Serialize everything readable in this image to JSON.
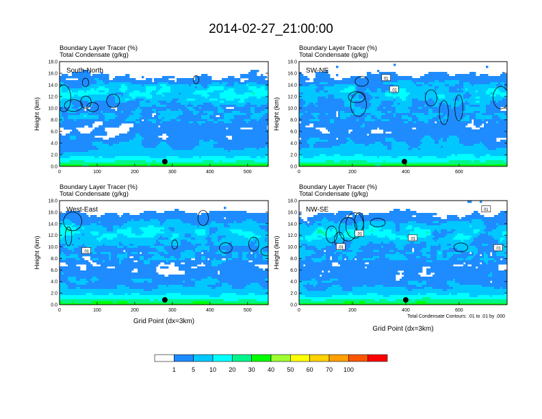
{
  "title": "2014-02-27_21:00:00",
  "panels": [
    {
      "id": "sn",
      "title1": "Boundary Layer Tracer   (%)",
      "title2": "Total Condensate   (g/kg)",
      "label": "South-North",
      "xticks": [
        "0",
        "100",
        "200",
        "300",
        "400",
        "500"
      ],
      "xmax": 555,
      "dot_x": 280,
      "box_labels": []
    },
    {
      "id": "swne",
      "title1": "Boundary Layer Tracer   (%)",
      "title2": "Total Condensate   (g/kg)",
      "label": "SW-NE",
      "xticks": [
        "0",
        "200",
        "400",
        "600"
      ],
      "xmax": 780,
      "dot_x": 395,
      "box_labels": [
        {
          "x": 325,
          "y": 15.2,
          "text": "01"
        },
        {
          "x": 355,
          "y": 13.2,
          "text": ".01"
        }
      ]
    },
    {
      "id": "we",
      "title1": "Boundary Layer Tracer   (%)",
      "title2": "Total Condensate   (g/kg)",
      "label": "West-East",
      "xticks": [
        "0",
        "100",
        "200",
        "300",
        "400",
        "500"
      ],
      "xmax": 555,
      "dot_x": 280,
      "box_labels": [
        {
          "x": 70,
          "y": 9.3,
          "text": ".01"
        }
      ]
    },
    {
      "id": "nwse",
      "title1": "Boundary Layer Tracer   (%)",
      "title2": "Total Condensate   (g/kg)",
      "label": "NW-SE",
      "xticks": [
        "0",
        "200",
        "400",
        "600"
      ],
      "xmax": 780,
      "dot_x": 400,
      "box_labels": [
        {
          "x": 225,
          "y": 12.3,
          "text": ".01"
        },
        {
          "x": 155,
          "y": 10.0,
          "text": ".01"
        },
        {
          "x": 425,
          "y": 11.5,
          "text": ".01"
        },
        {
          "x": 745,
          "y": 9.8,
          "text": ".01"
        },
        {
          "x": 700,
          "y": 16.5,
          "text": "01"
        }
      ]
    }
  ],
  "yticks": [
    "0.0",
    "2.0",
    "4.0",
    "6.0",
    "8.0",
    "10.0",
    "12.0",
    "14.0",
    "16.0",
    "18.0"
  ],
  "ylabel": "Height (km)",
  "xlabel": "Grid Point (dx=3km)",
  "contour_note": "Total Condensate Contours: .01 to .01 by .000",
  "colorbar": {
    "labels": [
      "1",
      "5",
      "10",
      "20",
      "30",
      "40",
      "50",
      "60",
      "70",
      "100"
    ],
    "colors": [
      "#ffffff",
      "#1e8cff",
      "#00c8ff",
      "#00ffff",
      "#00f58c",
      "#00ff00",
      "#a0ff32",
      "#ffff00",
      "#ffd200",
      "#ffa000",
      "#ff5500",
      "#ff0000"
    ]
  },
  "chart_data": [
    {
      "type": "heatmap",
      "title": "Boundary Layer Tracer (%) / Total Condensate (g/kg)",
      "panel": "South-North",
      "xlabel": "",
      "ylabel": "Height (km)",
      "xlim": [
        0,
        555
      ],
      "ylim": [
        0,
        18
      ],
      "marker_x": 280
    },
    {
      "type": "heatmap",
      "title": "Boundary Layer Tracer (%) / Total Condensate (g/kg)",
      "panel": "SW-NE",
      "xlabel": "",
      "ylabel": "Height (km)",
      "xlim": [
        0,
        780
      ],
      "ylim": [
        0,
        18
      ],
      "marker_x": 395
    },
    {
      "type": "heatmap",
      "title": "Boundary Layer Tracer (%) / Total Condensate (g/kg)",
      "panel": "West-East",
      "xlabel": "Grid Point (dx=3km)",
      "ylabel": "Height (km)",
      "xlim": [
        0,
        555
      ],
      "ylim": [
        0,
        18
      ],
      "marker_x": 280
    },
    {
      "type": "heatmap",
      "title": "Boundary Layer Tracer (%) / Total Condensate (g/kg)",
      "panel": "NW-SE",
      "xlabel": "Grid Point (dx=3km)",
      "ylabel": "Height (km)",
      "xlim": [
        0,
        780
      ],
      "ylim": [
        0,
        18
      ],
      "marker_x": 400
    }
  ]
}
